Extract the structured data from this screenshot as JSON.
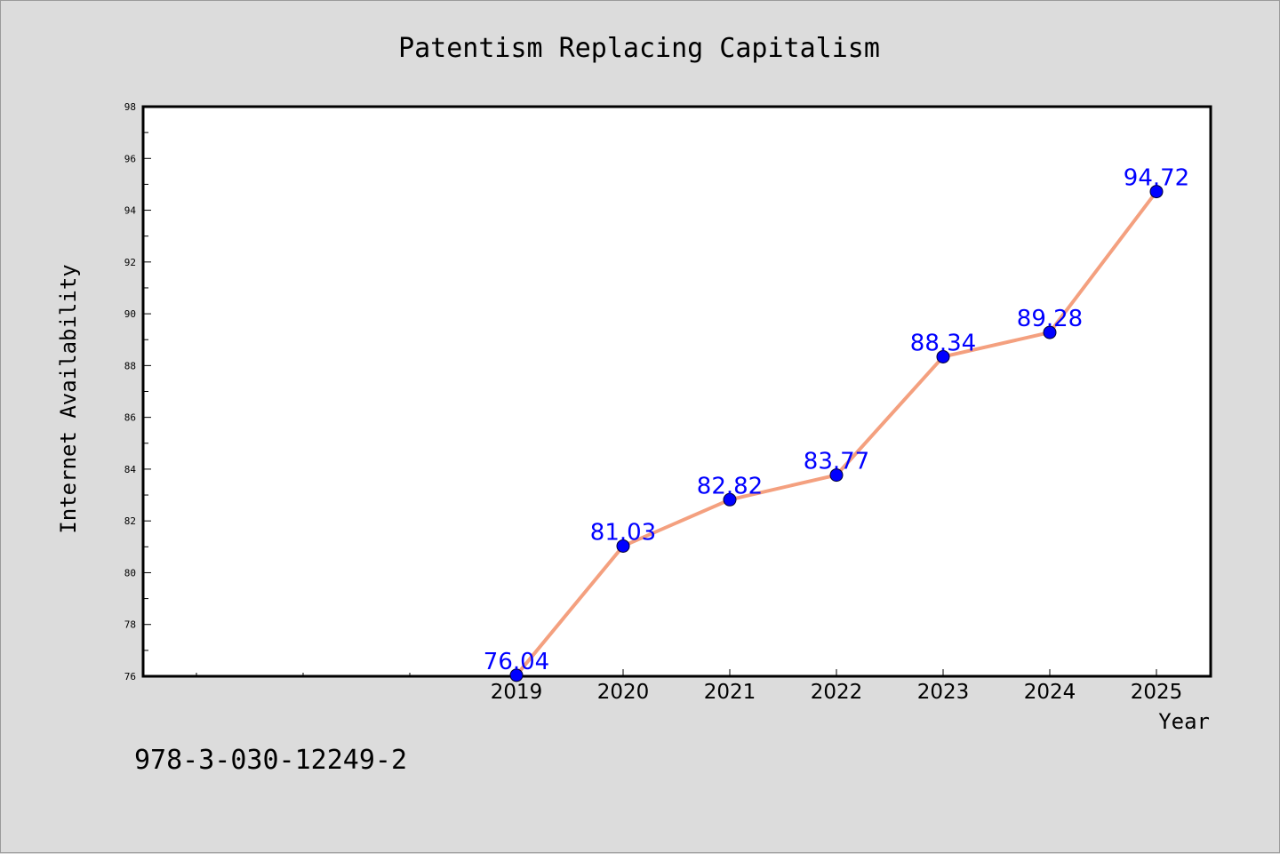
{
  "chart_data": {
    "type": "line",
    "title": "Patentism Replacing Capitalism",
    "xlabel": "Year",
    "ylabel": "Internet Availability",
    "x": [
      "2019",
      "2020",
      "2021",
      "2022",
      "2023",
      "2024",
      "2025"
    ],
    "series": [
      {
        "values": [
          76.04,
          81.03,
          82.82,
          83.77,
          88.34,
          89.28,
          94.72
        ],
        "line_color": "#f4a07f",
        "marker_color": "#0000ff"
      }
    ],
    "data_labels": [
      "76.04",
      "81.03",
      "82.82",
      "83.77",
      "88.34",
      "89.28",
      "94.72"
    ],
    "ylim": [
      76,
      98
    ],
    "yticks": [
      "76",
      "78",
      "80",
      "82",
      "84",
      "86",
      "88",
      "90",
      "92",
      "94",
      "96",
      "98"
    ],
    "grid": false,
    "legend": "none"
  },
  "footer": {
    "text": "978-3-030-12249-2"
  },
  "colors": {
    "background": "#dcdcdc",
    "plot_background": "#ffffff",
    "line": "#f4a07f",
    "marker": "#0000ff",
    "data_label": "#0000ff"
  }
}
